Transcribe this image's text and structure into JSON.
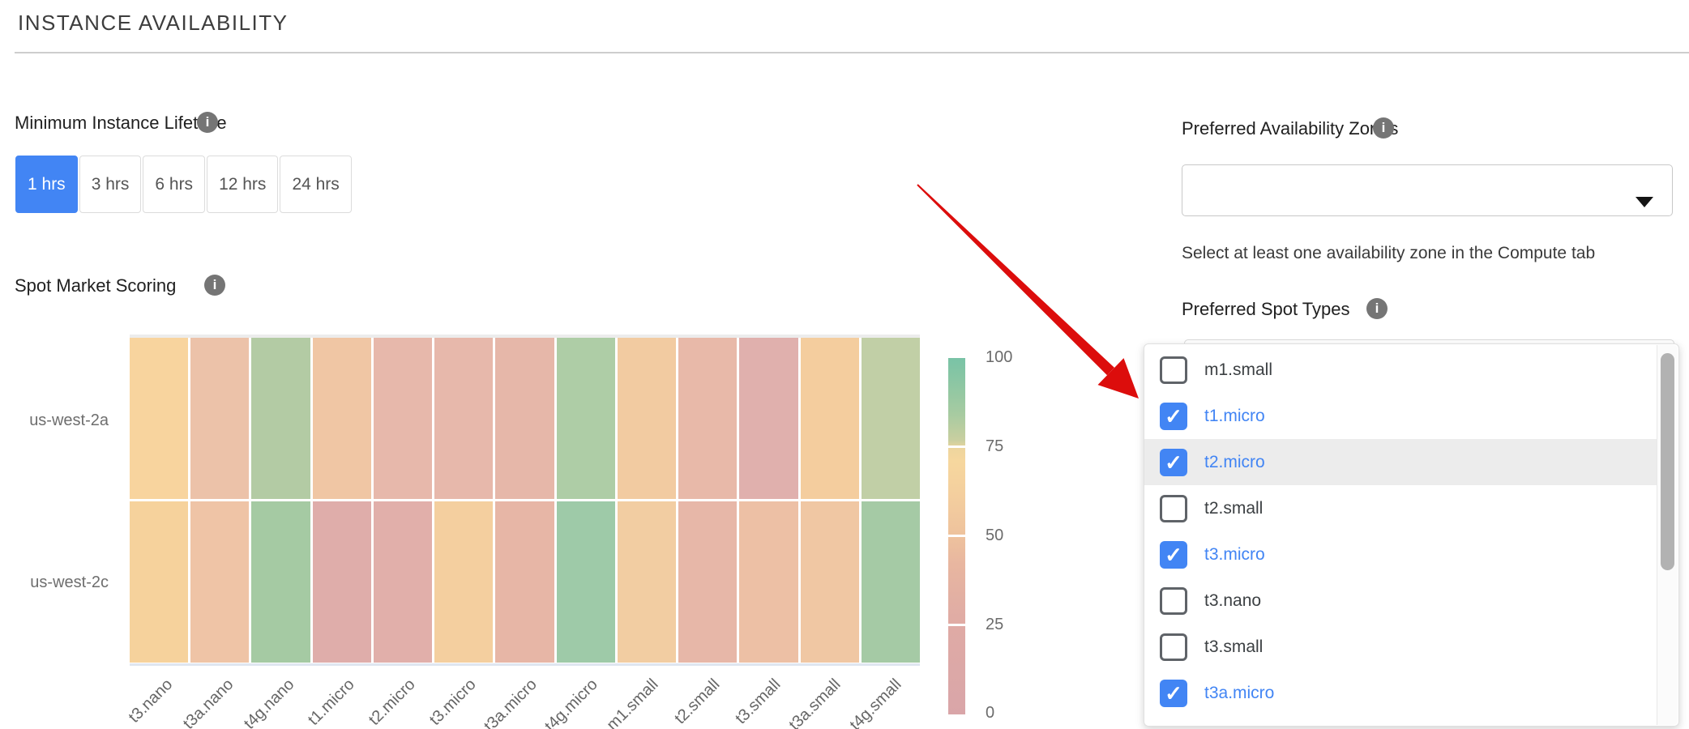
{
  "header": {
    "title": "INSTANCE AVAILABILITY"
  },
  "lifetime": {
    "label": "Minimum Instance Lifetime",
    "selected": "1 hrs",
    "options": [
      "1 hrs",
      "3 hrs",
      "6 hrs",
      "12 hrs",
      "24 hrs"
    ]
  },
  "scoring": {
    "label": "Spot Market Scoring"
  },
  "chart_data": {
    "type": "heatmap",
    "title": "Spot Market Scoring",
    "x_categories": [
      "t3.nano",
      "t3a.nano",
      "t4g.nano",
      "t1.micro",
      "t2.micro",
      "t3.micro",
      "t3a.micro",
      "t4g.micro",
      "m1.small",
      "t2.small",
      "t3.small",
      "t3a.small",
      "t4g.small"
    ],
    "rows": [
      "us-west-2a",
      "us-west-2c"
    ],
    "series": [
      {
        "name": "us-west-2a",
        "values": [
          60,
          42,
          77,
          48,
          35,
          35,
          34,
          78,
          50,
          36,
          28,
          58,
          73
        ],
        "colors": [
          "#f8d49e",
          "#ecc2a9",
          "#b3cba4",
          "#f0c6a4",
          "#e7b8ab",
          "#e7b8ab",
          "#e6b7a9",
          "#aecda6",
          "#f2cba1",
          "#e8b9a9",
          "#e0b0ad",
          "#f4cd9e",
          "#c1cfa6"
        ]
      },
      {
        "name": "us-west-2c",
        "values": [
          58,
          45,
          80,
          25,
          27,
          57,
          36,
          86,
          52,
          35,
          43,
          47,
          80
        ],
        "colors": [
          "#f6d29c",
          "#efc4a6",
          "#a5caa3",
          "#dfadaa",
          "#e1afaa",
          "#f4cf9f",
          "#e7b6a6",
          "#9ecaa8",
          "#f2cda2",
          "#e7b7a8",
          "#edc0a5",
          "#f0c7a3",
          "#a5caa5"
        ]
      }
    ],
    "colorbar": {
      "min": 0,
      "max": 100,
      "ticks": [
        "100",
        "75",
        "50",
        "25",
        "0"
      ],
      "top_color": "#79c3a6",
      "bottom_color": "#d9a5a8"
    },
    "legend_position": "right",
    "grid": false
  },
  "zones": {
    "label": "Preferred Availability Zones",
    "value": "",
    "helper": "Select at least one availability zone in the Compute tab"
  },
  "spot_types": {
    "label": "Preferred Spot Types",
    "options": [
      {
        "label": "m1.small",
        "checked": false,
        "highlighted": false
      },
      {
        "label": "t1.micro",
        "checked": true,
        "highlighted": false
      },
      {
        "label": "t2.micro",
        "checked": true,
        "highlighted": true
      },
      {
        "label": "t2.small",
        "checked": false,
        "highlighted": false
      },
      {
        "label": "t3.micro",
        "checked": true,
        "highlighted": false
      },
      {
        "label": "t3.nano",
        "checked": false,
        "highlighted": false
      },
      {
        "label": "t3.small",
        "checked": false,
        "highlighted": false
      },
      {
        "label": "t3a.micro",
        "checked": true,
        "highlighted": false
      }
    ]
  },
  "annotation": {
    "arrow_color": "#dc0d0c"
  },
  "colors": {
    "accent_blue": "#4285f4",
    "row_highlight": "#ececec"
  }
}
